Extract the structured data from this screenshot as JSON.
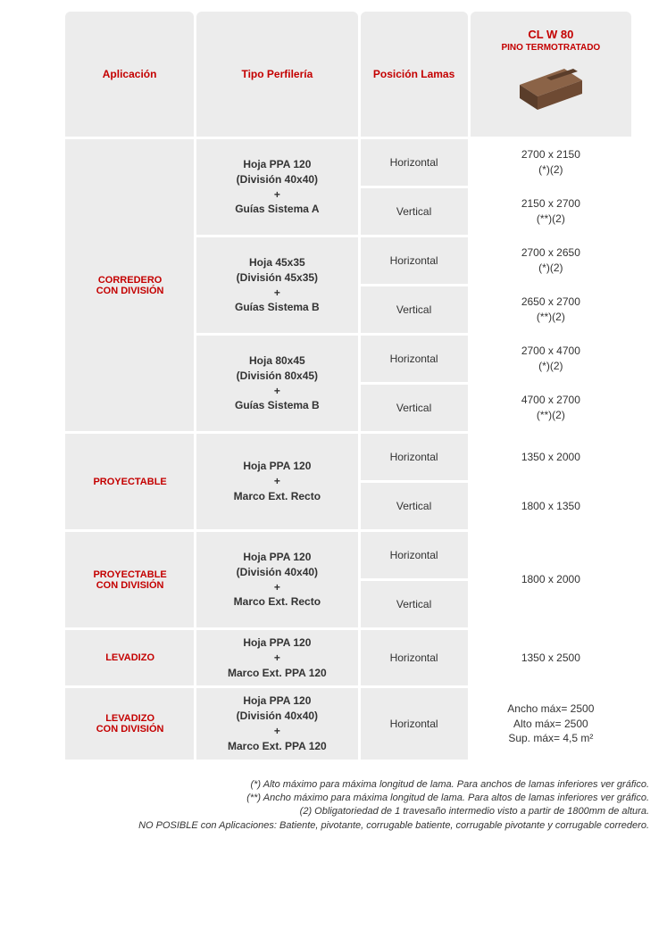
{
  "colors": {
    "red": "#c40000",
    "grey_bg": "#ececec",
    "text": "#333333",
    "white": "#ffffff",
    "wood_light": "#8b6347",
    "wood_dark": "#5a3d2a"
  },
  "header": {
    "col1": "Aplicación",
    "col2": "Tipo Perfilería",
    "col3": "Posición Lamas",
    "product_code": "CL W 80",
    "product_sub": "PINO TERMOTRATADO"
  },
  "sections": [
    {
      "app": "CORREDERO\nCON DIVISIÓN",
      "profiles": [
        {
          "label": "Hoja PPA 120\n(División 40x40)\n+\nGuías Sistema A",
          "rows": [
            {
              "pos": "Horizontal",
              "val": "2700 x 2150\n(*)(2)"
            },
            {
              "pos": "Vertical",
              "val": "2150 x 2700\n(**)(2)"
            }
          ]
        },
        {
          "label": "Hoja 45x35\n(División 45x35)\n+\nGuías Sistema B",
          "rows": [
            {
              "pos": "Horizontal",
              "val": "2700 x 2650\n(*)(2)"
            },
            {
              "pos": "Vertical",
              "val": "2650 x 2700\n(**)(2)"
            }
          ]
        },
        {
          "label": "Hoja 80x45\n(División 80x45)\n+\nGuías Sistema B",
          "rows": [
            {
              "pos": "Horizontal",
              "val": "2700 x 4700\n(*)(2)"
            },
            {
              "pos": "Vertical",
              "val": "4700 x 2700\n(**)(2)"
            }
          ]
        }
      ]
    },
    {
      "app": "PROYECTABLE",
      "profiles": [
        {
          "label": "Hoja PPA 120\n+\nMarco Ext. Recto",
          "rows": [
            {
              "pos": "Horizontal",
              "val": "1350 x 2000"
            },
            {
              "pos": "Vertical",
              "val": "1800 x 1350"
            }
          ]
        }
      ]
    },
    {
      "app": "PROYECTABLE\nCON DIVISIÓN",
      "profiles": [
        {
          "label": "Hoja PPA 120\n(División 40x40)\n+\nMarco Ext. Recto",
          "merged_val": "1800 x 2000",
          "rows": [
            {
              "pos": "Horizontal"
            },
            {
              "pos": "Vertical"
            }
          ]
        }
      ]
    },
    {
      "app": "LEVADIZO",
      "profiles": [
        {
          "label": "Hoja PPA 120\n+\nMarco Ext. PPA 120",
          "rows": [
            {
              "pos": "Horizontal",
              "val": "1350 x 2500"
            }
          ]
        }
      ]
    },
    {
      "app": "LEVADIZO\nCON DIVISIÓN",
      "profiles": [
        {
          "label": "Hoja PPA 120\n(División 40x40)\n+\nMarco Ext. PPA 120",
          "rows": [
            {
              "pos": "Horizontal",
              "val": "Ancho máx= 2500\nAlto máx= 2500\nSup. máx= 4,5 m²"
            }
          ]
        }
      ]
    }
  ],
  "notes": [
    "(*) Alto máximo para máxima longitud de lama. Para anchos de lamas inferiores ver gráfico.",
    "(**) Ancho máximo para máxima longitud de lama. Para altos de lamas inferiores ver gráfico.",
    "(2) Obligatoriedad de 1 travesaño intermedio visto a partir de 1800mm de altura.",
    "NO POSIBLE con Aplicaciones: Batiente, pivotante, corrugable batiente, corrugable pivotante y corrugable corredero."
  ]
}
